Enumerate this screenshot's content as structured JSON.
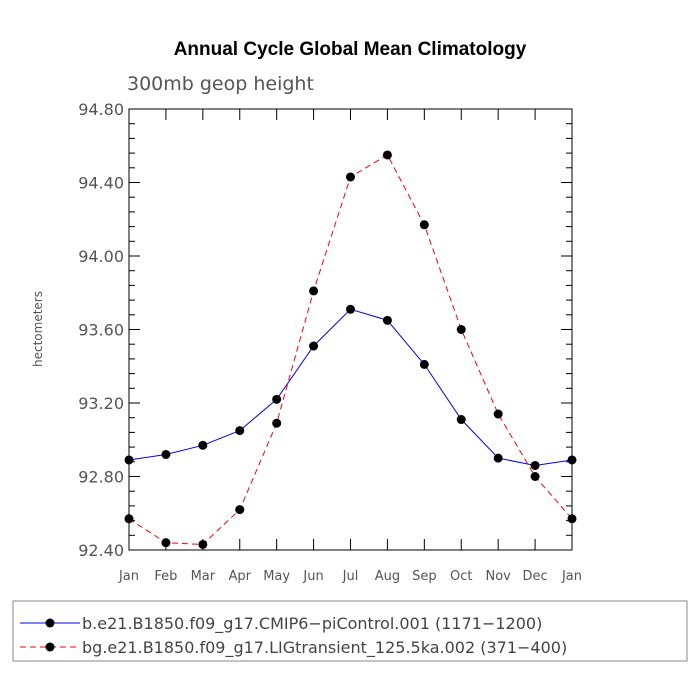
{
  "chart_data": {
    "type": "line",
    "title": "Annual Cycle Global Mean Climatology",
    "subtitle": "300mb geop height",
    "ylabel": "hectometers",
    "xlabel": "",
    "categories": [
      "Jan",
      "Feb",
      "Mar",
      "Apr",
      "May",
      "Jun",
      "Jul",
      "Aug",
      "Sep",
      "Oct",
      "Nov",
      "Dec",
      "Jan"
    ],
    "ylim": [
      92.4,
      94.8
    ],
    "yticks": [
      "92.40",
      "92.80",
      "93.20",
      "93.60",
      "94.00",
      "94.40",
      "94.80"
    ],
    "grid": false,
    "legend_position": "bottom",
    "series": [
      {
        "name": "b.e21.B1850.f09_g17.CMIP6−piControl.001 (1171−1200)",
        "color": "#0000ff",
        "dash": "solid",
        "values": [
          92.89,
          92.92,
          92.97,
          93.05,
          93.22,
          93.51,
          93.71,
          93.65,
          93.41,
          93.11,
          92.9,
          92.86,
          92.89
        ]
      },
      {
        "name": "bg.e21.B1850.f09_g17.LIGtransient_125.5ka.002 (371−400)",
        "color": "#ff0000",
        "dash": "dashed",
        "values": [
          92.57,
          92.44,
          92.43,
          92.62,
          93.09,
          93.81,
          94.43,
          94.55,
          94.17,
          93.6,
          93.14,
          92.8,
          92.57
        ]
      }
    ]
  }
}
